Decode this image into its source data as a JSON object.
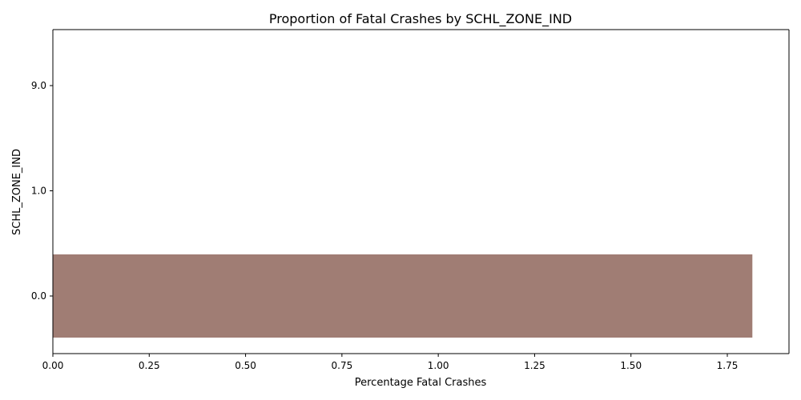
{
  "chart_data": {
    "type": "bar",
    "orientation": "horizontal",
    "title": "Proportion of Fatal Crashes by SCHL_ZONE_IND",
    "xlabel": "Percentage Fatal Crashes",
    "ylabel": "SCHL_ZONE_IND",
    "categories": [
      "0.0",
      "1.0",
      "9.0"
    ],
    "values": [
      1.815,
      0,
      0
    ],
    "xlim": [
      0,
      1.91
    ],
    "xticks": [
      0.0,
      0.25,
      0.5,
      0.75,
      1.0,
      1.25,
      1.5,
      1.75
    ],
    "xtick_labels": [
      "0.00",
      "0.25",
      "0.50",
      "0.75",
      "1.00",
      "1.25",
      "1.50",
      "1.75"
    ],
    "bar_color": "#a07d74",
    "grid": false,
    "legend": "none"
  }
}
